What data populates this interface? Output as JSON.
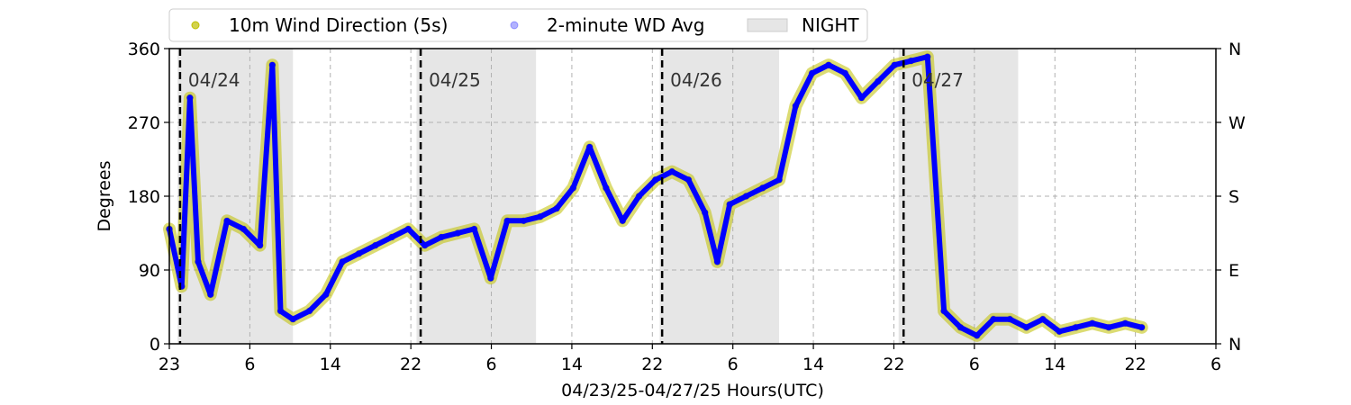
{
  "chart_data": {
    "type": "scatter",
    "xlabel": "04/23/25-04/27/25  Hours(UTC)",
    "ylabel": "Degrees",
    "x_range_hours": [
      0,
      127
    ],
    "xlim_dates": [
      "04/23/25 23:00",
      "04/29/25 06:00"
    ],
    "ylim": [
      0,
      360
    ],
    "y_ticks": [
      0,
      90,
      180,
      270,
      360
    ],
    "y_tick_labels": [
      "0",
      "90",
      "180",
      "270",
      "360"
    ],
    "y2_tick_labels": [
      "N",
      "E",
      "S",
      "W",
      "N"
    ],
    "x_ticks": [
      "23",
      "6",
      "14",
      "22",
      "6",
      "14",
      "22",
      "6",
      "14",
      "22",
      "6",
      "14",
      "22",
      "6"
    ],
    "grid": true,
    "legend_position": "top",
    "night_periods_hours": [
      [
        1.0,
        15.0
      ],
      [
        30.0,
        44.5
      ],
      [
        59.5,
        74.0
      ],
      [
        88.5,
        103.0
      ]
    ],
    "day_markers": [
      {
        "label": "04/24",
        "hour": 1.3
      },
      {
        "label": "04/25",
        "hour": 30.5
      },
      {
        "label": "04/26",
        "hour": 59.8
      },
      {
        "label": "04/27",
        "hour": 89.1
      }
    ],
    "series": [
      {
        "name": "10m Wind Direction (5s)",
        "color": "#bfbf00",
        "points": [
          [
            0,
            140
          ],
          [
            1.5,
            70
          ],
          [
            2.5,
            300
          ],
          [
            3.5,
            100
          ],
          [
            5,
            60
          ],
          [
            7,
            150
          ],
          [
            9,
            140
          ],
          [
            11,
            120
          ],
          [
            12.5,
            340
          ],
          [
            13.5,
            40
          ],
          [
            15,
            30
          ],
          [
            17,
            40
          ],
          [
            19,
            60
          ],
          [
            21,
            100
          ],
          [
            23,
            110
          ],
          [
            25,
            120
          ],
          [
            27,
            130
          ],
          [
            29,
            140
          ],
          [
            31,
            120
          ],
          [
            33,
            130
          ],
          [
            35,
            135
          ],
          [
            37,
            140
          ],
          [
            39,
            80
          ],
          [
            41,
            150
          ],
          [
            43,
            150
          ],
          [
            45,
            155
          ],
          [
            47,
            165
          ],
          [
            49,
            190
          ],
          [
            51,
            240
          ],
          [
            53,
            190
          ],
          [
            55,
            150
          ],
          [
            57,
            180
          ],
          [
            59,
            200
          ],
          [
            61,
            210
          ],
          [
            63,
            200
          ],
          [
            65,
            160
          ],
          [
            66.5,
            100
          ],
          [
            68,
            170
          ],
          [
            70,
            180
          ],
          [
            72,
            190
          ],
          [
            74,
            200
          ],
          [
            76,
            290
          ],
          [
            78,
            330
          ],
          [
            80,
            340
          ],
          [
            82,
            330
          ],
          [
            84,
            300
          ],
          [
            86,
            320
          ],
          [
            88,
            340
          ],
          [
            90,
            345
          ],
          [
            92,
            350
          ],
          [
            94,
            40
          ],
          [
            96,
            20
          ],
          [
            98,
            10
          ],
          [
            100,
            30
          ],
          [
            102,
            30
          ],
          [
            104,
            20
          ],
          [
            106,
            30
          ],
          [
            108,
            15
          ],
          [
            110,
            20
          ],
          [
            112,
            25
          ],
          [
            114,
            20
          ],
          [
            116,
            25
          ],
          [
            118,
            20
          ]
        ]
      },
      {
        "name": "2-minute WD Avg",
        "color": "#0000ff",
        "points": [
          [
            0,
            140
          ],
          [
            1.5,
            70
          ],
          [
            2.5,
            300
          ],
          [
            3.5,
            100
          ],
          [
            5,
            60
          ],
          [
            7,
            150
          ],
          [
            9,
            140
          ],
          [
            11,
            120
          ],
          [
            12.5,
            340
          ],
          [
            13.5,
            40
          ],
          [
            15,
            30
          ],
          [
            17,
            40
          ],
          [
            19,
            60
          ],
          [
            21,
            100
          ],
          [
            23,
            110
          ],
          [
            25,
            120
          ],
          [
            27,
            130
          ],
          [
            29,
            140
          ],
          [
            31,
            120
          ],
          [
            33,
            130
          ],
          [
            35,
            135
          ],
          [
            37,
            140
          ],
          [
            39,
            80
          ],
          [
            41,
            150
          ],
          [
            43,
            150
          ],
          [
            45,
            155
          ],
          [
            47,
            165
          ],
          [
            49,
            190
          ],
          [
            51,
            240
          ],
          [
            53,
            190
          ],
          [
            55,
            150
          ],
          [
            57,
            180
          ],
          [
            59,
            200
          ],
          [
            61,
            210
          ],
          [
            63,
            200
          ],
          [
            65,
            160
          ],
          [
            66.5,
            100
          ],
          [
            68,
            170
          ],
          [
            70,
            180
          ],
          [
            72,
            190
          ],
          [
            74,
            200
          ],
          [
            76,
            290
          ],
          [
            78,
            330
          ],
          [
            80,
            340
          ],
          [
            82,
            330
          ],
          [
            84,
            300
          ],
          [
            86,
            320
          ],
          [
            88,
            340
          ],
          [
            90,
            345
          ],
          [
            92,
            350
          ],
          [
            94,
            40
          ],
          [
            96,
            20
          ],
          [
            98,
            10
          ],
          [
            100,
            30
          ],
          [
            102,
            30
          ],
          [
            104,
            20
          ],
          [
            106,
            30
          ],
          [
            108,
            15
          ],
          [
            110,
            20
          ],
          [
            112,
            25
          ],
          [
            114,
            20
          ],
          [
            116,
            25
          ],
          [
            118,
            20
          ]
        ]
      }
    ],
    "legend": [
      {
        "label": "10m Wind Direction (5s)",
        "marker": "dot",
        "color": "#bfbf00"
      },
      {
        "label": "2-minute WD Avg",
        "marker": "dot",
        "color": "#0000ff"
      },
      {
        "label": "NIGHT",
        "marker": "patch",
        "color": "#e6e6e6"
      }
    ]
  }
}
